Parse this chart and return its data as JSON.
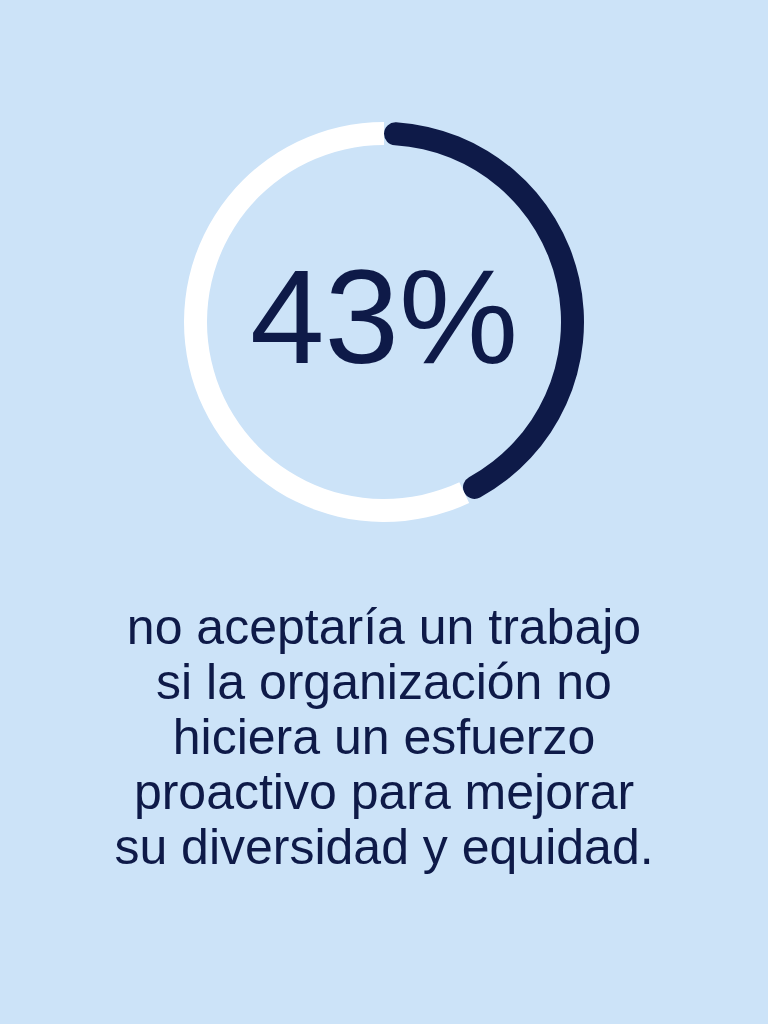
{
  "chart_data": {
    "type": "donut",
    "categories": [
      null,
      null
    ],
    "values": [
      43,
      57
    ],
    "colors": [
      "#0e1a48",
      "#ffffff"
    ],
    "value_labels": [
      "43%",
      null
    ],
    "annotations": [
      "no aceptaría un trabajo si la organización no hiciera un esfuerzo proactivo para mejorar su diversidad y equidad."
    ]
  }
}
